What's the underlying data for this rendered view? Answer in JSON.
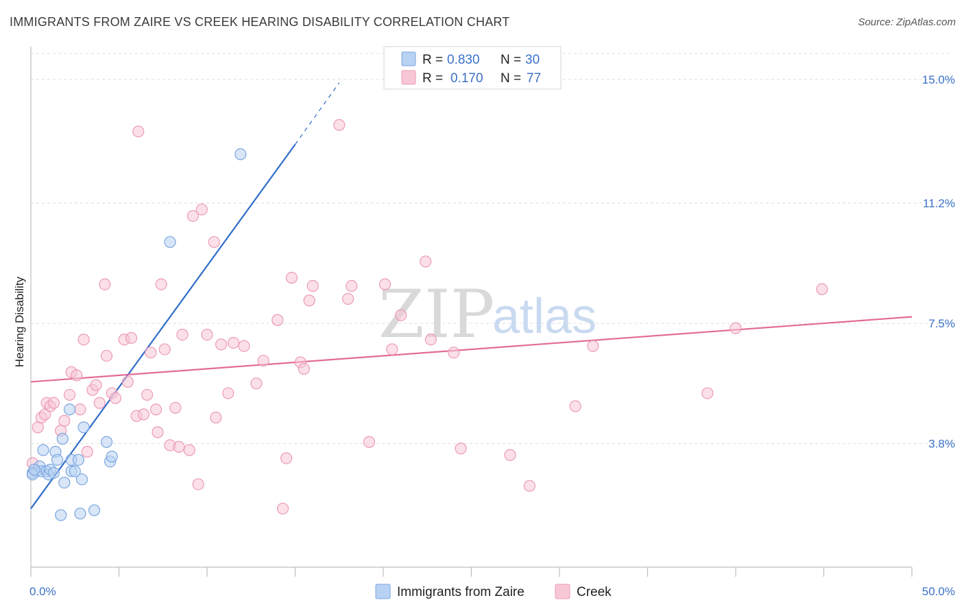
{
  "title": "IMMIGRANTS FROM ZAIRE VS CREEK HEARING DISABILITY CORRELATION CHART",
  "source": "Source: ZipAtlas.com",
  "watermark": {
    "zip": "ZIP",
    "atlas": "atlas"
  },
  "chart_data": {
    "type": "scatter",
    "title": "IMMIGRANTS FROM ZAIRE VS CREEK HEARING DISABILITY CORRELATION CHART",
    "xlabel": "",
    "ylabel": "Hearing Disability",
    "xlim": [
      0,
      50
    ],
    "ylim": [
      0,
      15.8
    ],
    "x_tick_labels": {
      "left": "0.0%",
      "right": "50.0%"
    },
    "y_ticks": [
      {
        "value": 3.8,
        "label": "3.8%"
      },
      {
        "value": 7.5,
        "label": "7.5%"
      },
      {
        "value": 11.2,
        "label": "11.2%"
      },
      {
        "value": 15.0,
        "label": "15.0%"
      }
    ],
    "legend_stats": [
      {
        "r_label": "R =",
        "r_value": "0.830",
        "n_label": "N =",
        "n_value": "30"
      },
      {
        "r_label": "R =",
        "r_value": "0.170",
        "n_label": "N =",
        "n_value": "77"
      }
    ],
    "series": [
      {
        "name": "Immigrants from Zaire",
        "color": "#7aa6e0",
        "fill": "#b8d2f3",
        "line_color": "#2e6cc9",
        "trend": {
          "x0": 0.0,
          "y0": 1.8,
          "x1": 15.0,
          "y1": 13.0,
          "x_dash_end": 17.5,
          "y_dash_end": 14.9
        },
        "points": [
          [
            0.1,
            2.9
          ],
          [
            0.3,
            2.95
          ],
          [
            0.5,
            3.1
          ],
          [
            0.6,
            2.95
          ],
          [
            0.7,
            3.6
          ],
          [
            0.9,
            2.95
          ],
          [
            1.0,
            2.85
          ],
          [
            1.1,
            3.0
          ],
          [
            1.3,
            2.9
          ],
          [
            1.4,
            3.55
          ],
          [
            1.5,
            3.3
          ],
          [
            1.7,
            1.6
          ],
          [
            1.8,
            3.95
          ],
          [
            1.9,
            2.6
          ],
          [
            2.2,
            4.85
          ],
          [
            2.3,
            2.95
          ],
          [
            2.3,
            3.3
          ],
          [
            2.5,
            2.95
          ],
          [
            2.7,
            3.3
          ],
          [
            2.8,
            1.65
          ],
          [
            2.9,
            2.7
          ],
          [
            3.0,
            4.3
          ],
          [
            3.6,
            1.75
          ],
          [
            4.3,
            3.85
          ],
          [
            4.5,
            3.25
          ],
          [
            4.6,
            3.4
          ],
          [
            7.9,
            10.0
          ],
          [
            11.9,
            12.7
          ],
          [
            0.1,
            2.85
          ],
          [
            0.2,
            3.0
          ]
        ]
      },
      {
        "name": "Creek",
        "color": "#eb9ab5",
        "fill": "#f8c7d6",
        "line_color": "#e26b96",
        "trend": {
          "x0": 0.0,
          "y0": 5.7,
          "x1": 50.0,
          "y1": 7.7
        },
        "points": [
          [
            0.1,
            3.2
          ],
          [
            0.4,
            4.3
          ],
          [
            0.6,
            4.6
          ],
          [
            0.8,
            4.7
          ],
          [
            0.9,
            5.05
          ],
          [
            1.1,
            4.95
          ],
          [
            1.3,
            5.05
          ],
          [
            1.7,
            4.2
          ],
          [
            1.9,
            4.5
          ],
          [
            2.2,
            5.3
          ],
          [
            2.3,
            6.0
          ],
          [
            2.6,
            5.9
          ],
          [
            2.8,
            4.85
          ],
          [
            3.0,
            7.0
          ],
          [
            3.2,
            3.55
          ],
          [
            3.5,
            5.45
          ],
          [
            3.7,
            5.6
          ],
          [
            3.9,
            5.05
          ],
          [
            4.2,
            8.7
          ],
          [
            4.3,
            6.5
          ],
          [
            4.6,
            5.35
          ],
          [
            4.8,
            5.2
          ],
          [
            5.3,
            7.0
          ],
          [
            5.5,
            5.7
          ],
          [
            5.7,
            7.05
          ],
          [
            6.0,
            4.65
          ],
          [
            6.1,
            13.4
          ],
          [
            6.4,
            4.7
          ],
          [
            6.6,
            5.3
          ],
          [
            6.8,
            6.6
          ],
          [
            7.1,
            4.85
          ],
          [
            7.2,
            4.15
          ],
          [
            7.4,
            8.7
          ],
          [
            7.6,
            6.7
          ],
          [
            7.9,
            3.75
          ],
          [
            8.2,
            4.9
          ],
          [
            8.4,
            3.7
          ],
          [
            8.6,
            7.15
          ],
          [
            9.0,
            3.6
          ],
          [
            9.2,
            10.8
          ],
          [
            9.5,
            2.55
          ],
          [
            9.7,
            11.0
          ],
          [
            10.0,
            7.15
          ],
          [
            10.4,
            10.0
          ],
          [
            10.5,
            4.6
          ],
          [
            10.8,
            6.85
          ],
          [
            11.2,
            5.35
          ],
          [
            11.5,
            6.9
          ],
          [
            12.1,
            6.8
          ],
          [
            12.8,
            5.65
          ],
          [
            13.2,
            6.35
          ],
          [
            14.0,
            7.6
          ],
          [
            14.3,
            1.8
          ],
          [
            14.5,
            3.35
          ],
          [
            14.8,
            8.9
          ],
          [
            15.3,
            6.3
          ],
          [
            15.5,
            6.1
          ],
          [
            15.8,
            8.2
          ],
          [
            16.0,
            8.65
          ],
          [
            17.5,
            13.6
          ],
          [
            18.0,
            8.25
          ],
          [
            18.2,
            8.65
          ],
          [
            19.2,
            3.85
          ],
          [
            20.1,
            8.7
          ],
          [
            20.5,
            6.7
          ],
          [
            21.0,
            7.75
          ],
          [
            22.4,
            9.4
          ],
          [
            22.7,
            7.0
          ],
          [
            24.0,
            6.6
          ],
          [
            24.4,
            3.65
          ],
          [
            27.2,
            3.45
          ],
          [
            28.3,
            2.5
          ],
          [
            30.9,
            4.95
          ],
          [
            31.9,
            6.8
          ],
          [
            38.4,
            5.35
          ],
          [
            40.0,
            7.35
          ],
          [
            44.9,
            8.55
          ]
        ]
      }
    ]
  }
}
